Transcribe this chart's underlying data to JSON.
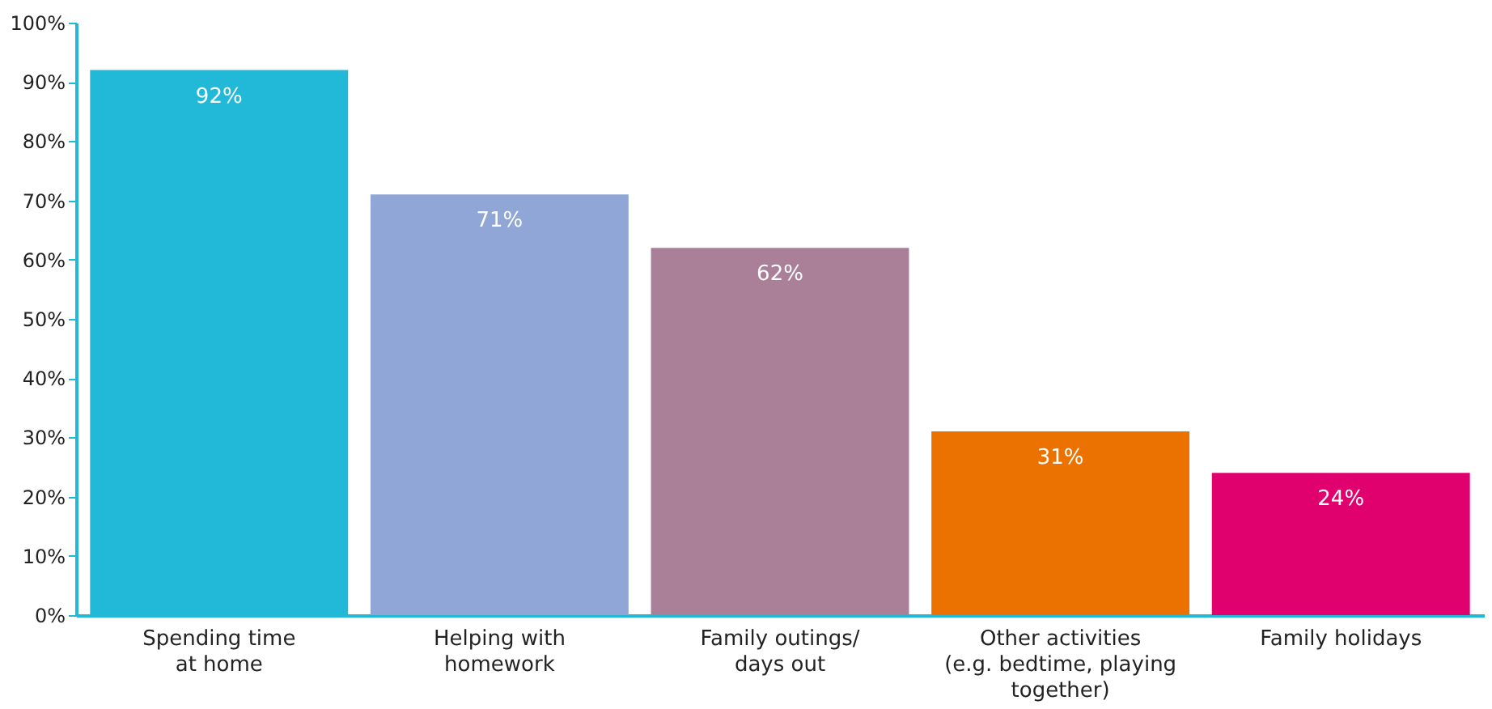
{
  "chart_data": {
    "type": "bar",
    "categories": [
      "Spending time\nat home",
      "Helping with\nhomework",
      "Family outings/\ndays out",
      "Other activities\n(e.g. bedtime, playing\ntogether)",
      "Family holidays"
    ],
    "values": [
      92,
      71,
      62,
      31,
      24
    ],
    "colors": [
      "#22b8d8",
      "#8fa6d6",
      "#a98098",
      "#ec7200",
      "#e0006e"
    ],
    "ylim": [
      0,
      100
    ],
    "yticks": [
      {
        "value": 0,
        "label": "0%"
      },
      {
        "value": 10,
        "label": "10%"
      },
      {
        "value": 20,
        "label": "20%"
      },
      {
        "value": 30,
        "label": "30%"
      },
      {
        "value": 40,
        "label": "40%"
      },
      {
        "value": 50,
        "label": "50%"
      },
      {
        "value": 60,
        "label": "60%"
      },
      {
        "value": 70,
        "label": "70%"
      },
      {
        "value": 80,
        "label": "80%"
      },
      {
        "value": 90,
        "label": "90%"
      },
      {
        "value": 100,
        "label": "100%"
      }
    ],
    "value_labels": [
      "92%",
      "71%",
      "62%",
      "31%",
      "24%"
    ],
    "grid": false,
    "legend": false
  }
}
